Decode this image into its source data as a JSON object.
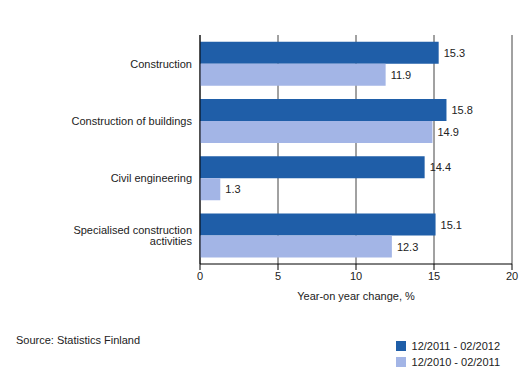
{
  "chart_data": {
    "type": "bar",
    "orientation": "horizontal",
    "categories": [
      "Construction",
      "Construction of buildings",
      "Civil engineering",
      "Specialised construction activities"
    ],
    "series": [
      {
        "name": "12/2011 - 02/2012",
        "color": "#1f5ea8",
        "values": [
          15.3,
          15.8,
          14.4,
          15.1
        ]
      },
      {
        "name": "12/2010 - 02/2011",
        "color": "#a3b5e6",
        "values": [
          11.9,
          14.9,
          1.3,
          12.3
        ]
      }
    ],
    "xlabel": "Year-on year change, %",
    "xlim": [
      0,
      20
    ],
    "xticks": [
      0,
      5,
      10,
      15,
      20
    ],
    "grid": true,
    "data_labels": true,
    "legend": "lower right",
    "annotations": [
      "Source: Statistics Finland"
    ]
  }
}
